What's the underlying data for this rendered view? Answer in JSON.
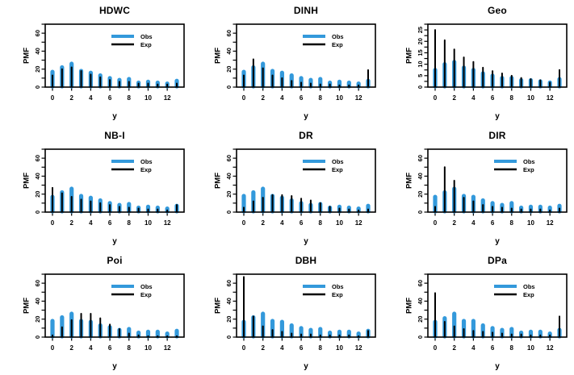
{
  "figure": {
    "xlabel": "y",
    "ylabel": "PMF",
    "categories": [
      0,
      1,
      2,
      3,
      4,
      5,
      6,
      7,
      8,
      9,
      10,
      11,
      12,
      13
    ],
    "xtick_positions": [
      0,
      2,
      4,
      6,
      8,
      10,
      12
    ],
    "xtick_labels": [
      "0",
      "2",
      "4",
      "6",
      "8",
      "10",
      "12"
    ]
  },
  "legend": {
    "obs_label": "Obs",
    "exp_label": "Exp",
    "position": "top-right"
  },
  "colors": {
    "obs": "#3399DB",
    "exp": "#000000",
    "axis": "#000000",
    "background": "#FFFFFF"
  },
  "chart_data": [
    {
      "type": "bar",
      "title": "HDWC",
      "xlabel": "y",
      "ylabel": "PMF",
      "ylim": [
        0,
        70
      ],
      "ytick_minor_step": 10,
      "yticks_labeled": [
        {
          "v": 0,
          "label": "0"
        },
        {
          "v": 20,
          "label": "20"
        },
        {
          "v": 40,
          "label": "40"
        },
        {
          "v": 60,
          "label": "60"
        }
      ],
      "show_legend": true,
      "series": [
        {
          "name": "Obs",
          "values": [
            17,
            22,
            26,
            18,
            16,
            13,
            10,
            8,
            9,
            5,
            6,
            5,
            4,
            7
          ]
        },
        {
          "name": "Exp",
          "values": [
            13,
            20,
            22,
            18,
            14,
            11,
            8,
            6,
            6,
            4,
            4,
            3,
            3,
            4
          ]
        }
      ]
    },
    {
      "type": "bar",
      "title": "DINH",
      "xlabel": "y",
      "ylabel": "PMF",
      "ylim": [
        0,
        70
      ],
      "ytick_minor_step": 10,
      "yticks_labeled": [
        {
          "v": 0,
          "label": "0"
        },
        {
          "v": 20,
          "label": "20"
        },
        {
          "v": 40,
          "label": "40"
        },
        {
          "v": 60,
          "label": "60"
        }
      ],
      "show_legend": true,
      "series": [
        {
          "name": "Obs",
          "values": [
            17,
            22,
            26,
            18,
            16,
            13,
            10,
            8,
            9,
            5,
            6,
            5,
            4,
            7
          ]
        },
        {
          "name": "Exp",
          "values": [
            13,
            31,
            21,
            13,
            10,
            7,
            5,
            4,
            3,
            3,
            2,
            2,
            2,
            19
          ]
        }
      ]
    },
    {
      "type": "bar",
      "title": "Geo",
      "xlabel": "y",
      "ylabel": "PMF",
      "ylim": [
        0,
        27.5
      ],
      "ytick_minor_step": 2.5,
      "yticks_labeled": [
        {
          "v": 0,
          "label": "0"
        },
        {
          "v": 5,
          "label": "5"
        },
        {
          "v": 10,
          "label": "10"
        },
        {
          "v": 15,
          "label": "15"
        },
        {
          "v": 20,
          "label": "20"
        },
        {
          "v": 25,
          "label": "25"
        }
      ],
      "show_legend": false,
      "series": [
        {
          "name": "Obs",
          "values": [
            7.5,
            10,
            11,
            8.5,
            7.5,
            6,
            5,
            4,
            4,
            3,
            3,
            2.5,
            2,
            3.5
          ]
        },
        {
          "name": "Exp",
          "values": [
            25,
            20.5,
            16.5,
            13,
            11,
            8.5,
            7,
            6,
            5,
            4,
            3.5,
            3,
            2,
            7.5
          ]
        }
      ]
    },
    {
      "type": "bar",
      "title": "NB-I",
      "xlabel": "y",
      "ylabel": "PMF",
      "ylim": [
        0,
        70
      ],
      "ytick_minor_step": 10,
      "yticks_labeled": [
        {
          "v": 0,
          "label": "0"
        },
        {
          "v": 20,
          "label": "20"
        },
        {
          "v": 40,
          "label": "40"
        },
        {
          "v": 60,
          "label": "60"
        }
      ],
      "show_legend": true,
      "series": [
        {
          "name": "Obs",
          "values": [
            17,
            22,
            26,
            18,
            16,
            13,
            10,
            8,
            9,
            5,
            6,
            5,
            4,
            7
          ]
        },
        {
          "name": "Exp",
          "values": [
            27,
            21,
            17,
            14,
            12,
            10,
            8,
            6,
            5,
            4,
            3,
            3,
            2,
            8
          ]
        }
      ]
    },
    {
      "type": "bar",
      "title": "DR",
      "xlabel": "y",
      "ylabel": "PMF",
      "ylim": [
        0,
        70
      ],
      "ytick_minor_step": 10,
      "yticks_labeled": [
        {
          "v": 0,
          "label": "0"
        },
        {
          "v": 20,
          "label": "20"
        },
        {
          "v": 40,
          "label": "40"
        },
        {
          "v": 60,
          "label": "60"
        }
      ],
      "show_legend": true,
      "series": [
        {
          "name": "Obs",
          "values": [
            18,
            22,
            26,
            18,
            16,
            13,
            10,
            8,
            9,
            5,
            6,
            5,
            4,
            7
          ]
        },
        {
          "name": "Exp",
          "values": [
            5,
            12,
            16,
            19,
            19,
            18,
            15,
            13,
            10,
            6,
            4,
            3,
            2,
            3
          ]
        }
      ]
    },
    {
      "type": "bar",
      "title": "DIR",
      "xlabel": "y",
      "ylabel": "PMF",
      "ylim": [
        0,
        70
      ],
      "ytick_minor_step": 10,
      "yticks_labeled": [
        {
          "v": 0,
          "label": "0"
        },
        {
          "v": 20,
          "label": "20"
        },
        {
          "v": 40,
          "label": "40"
        },
        {
          "v": 60,
          "label": "60"
        }
      ],
      "show_legend": true,
      "series": [
        {
          "name": "Obs",
          "values": [
            17,
            22,
            26,
            18,
            17,
            13,
            10,
            8,
            10,
            5,
            6,
            6,
            5,
            7
          ]
        },
        {
          "name": "Exp",
          "values": [
            6,
            50,
            35,
            16,
            12,
            8,
            6,
            5,
            4,
            3,
            3,
            3,
            2,
            4
          ]
        }
      ]
    },
    {
      "type": "bar",
      "title": "Poi",
      "xlabel": "y",
      "ylabel": "PMF",
      "ylim": [
        0,
        70
      ],
      "ytick_minor_step": 10,
      "yticks_labeled": [
        {
          "v": 0,
          "label": "0"
        },
        {
          "v": 20,
          "label": "20"
        },
        {
          "v": 40,
          "label": "40"
        },
        {
          "v": 60,
          "label": "60"
        }
      ],
      "show_legend": true,
      "series": [
        {
          "name": "Obs",
          "values": [
            18,
            22,
            26,
            18,
            17,
            13,
            11,
            8,
            9,
            5,
            6,
            6,
            4,
            7
          ]
        },
        {
          "name": "Exp",
          "values": [
            2,
            11,
            19,
            26,
            26,
            21,
            14,
            9,
            4,
            2,
            1,
            1,
            1,
            1
          ]
        }
      ]
    },
    {
      "type": "bar",
      "title": "DBH",
      "xlabel": "y",
      "ylabel": "PMF",
      "ylim": [
        0,
        70
      ],
      "ytick_minor_step": 10,
      "yticks_labeled": [
        {
          "v": 0,
          "label": "0"
        },
        {
          "v": 20,
          "label": "20"
        },
        {
          "v": 40,
          "label": "40"
        },
        {
          "v": 60,
          "label": "60"
        }
      ],
      "show_legend": true,
      "series": [
        {
          "name": "Obs",
          "values": [
            17,
            22,
            26,
            18,
            17,
            13,
            10,
            8,
            9,
            5,
            6,
            6,
            4,
            7
          ]
        },
        {
          "name": "Exp",
          "values": [
            67,
            23,
            12,
            8,
            6,
            4,
            3,
            3,
            2,
            2,
            2,
            2,
            1,
            7
          ]
        }
      ]
    },
    {
      "type": "bar",
      "title": "DPa",
      "xlabel": "y",
      "ylabel": "PMF",
      "ylim": [
        0,
        70
      ],
      "ytick_minor_step": 10,
      "yticks_labeled": [
        {
          "v": 0,
          "label": "0"
        },
        {
          "v": 20,
          "label": "20"
        },
        {
          "v": 40,
          "label": "40"
        },
        {
          "v": 60,
          "label": "60"
        }
      ],
      "show_legend": true,
      "series": [
        {
          "name": "Obs",
          "values": [
            17,
            21,
            26,
            18,
            18,
            13,
            10,
            8,
            9,
            5,
            6,
            6,
            4,
            8
          ]
        },
        {
          "name": "Exp",
          "values": [
            49,
            17,
            12,
            9,
            7,
            6,
            5,
            4,
            3,
            3,
            2,
            2,
            2,
            23
          ]
        }
      ]
    }
  ]
}
